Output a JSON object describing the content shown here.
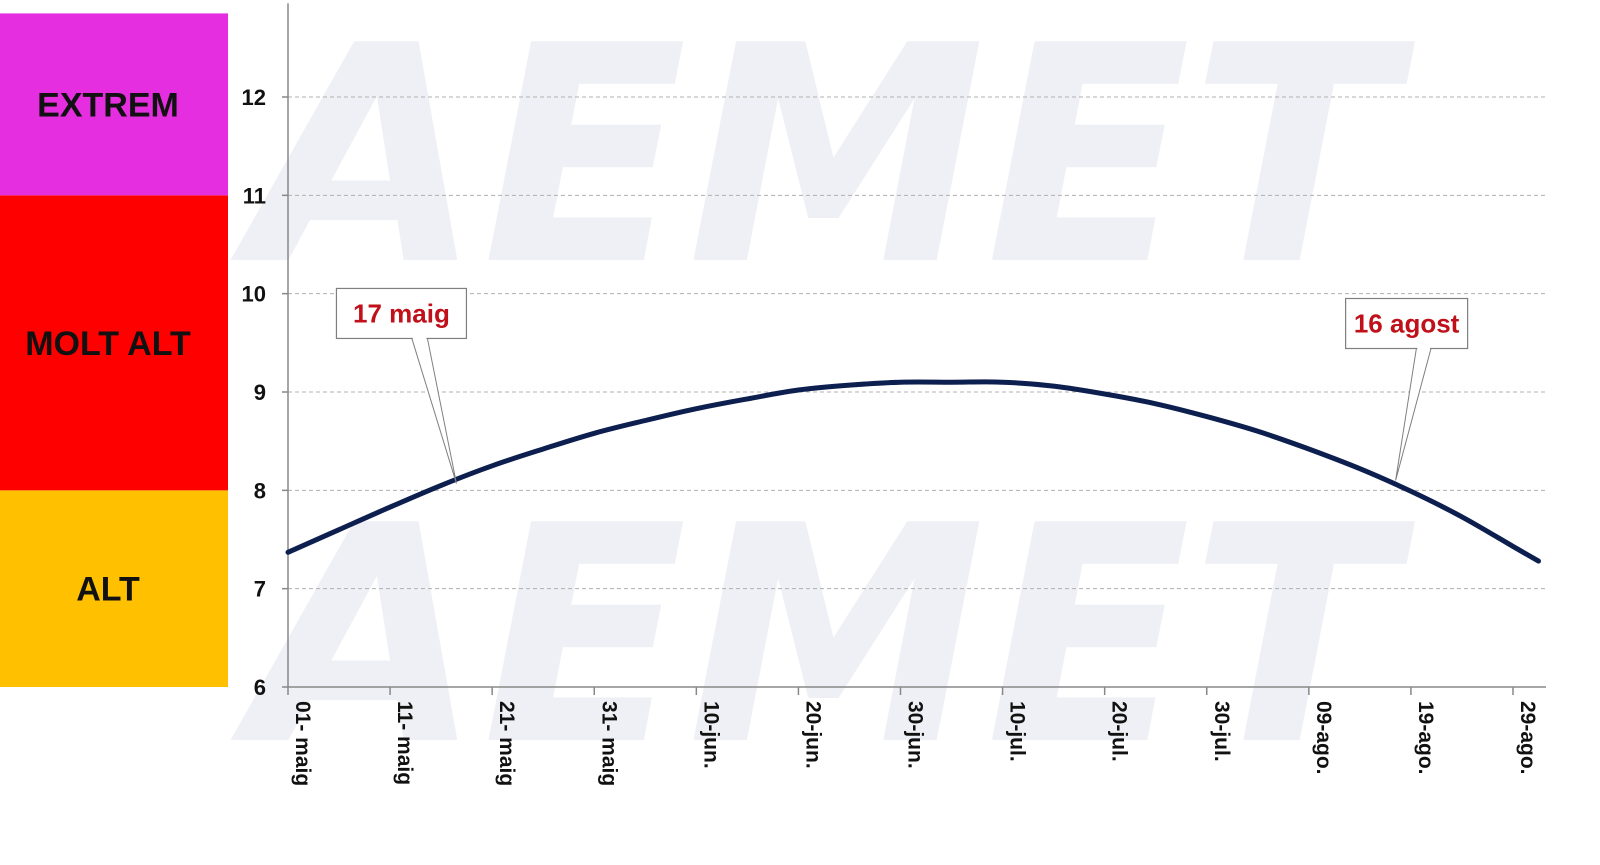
{
  "colors": {
    "line": "#0d1f4f",
    "callout_text": "#c0101a",
    "grid": "#b0b0b0",
    "axis": "#888888"
  },
  "risk_bands": [
    {
      "label": "ALT",
      "from": 6,
      "to": 8,
      "color": "#ffc000"
    },
    {
      "label": "MOLT ALT",
      "from": 8,
      "to": 11,
      "color": "#ff0000"
    },
    {
      "label": "EXTREM",
      "from": 11,
      "to": 12.85,
      "color": "#e52ee0"
    }
  ],
  "chart_data": {
    "type": "line",
    "title": "",
    "xlabel": "",
    "ylabel": "",
    "ylim": [
      6,
      12.85
    ],
    "y_ticks": [
      6,
      7,
      8,
      9,
      10,
      11,
      12
    ],
    "grid": true,
    "x_ticks": [
      {
        "day": 0,
        "label": "01- maig"
      },
      {
        "day": 10,
        "label": "11- maig"
      },
      {
        "day": 20,
        "label": "21- maig"
      },
      {
        "day": 30,
        "label": "31- maig"
      },
      {
        "day": 40,
        "label": "10-jun."
      },
      {
        "day": 50,
        "label": "20-jun."
      },
      {
        "day": 60,
        "label": "30-jun."
      },
      {
        "day": 70,
        "label": "10-jul."
      },
      {
        "day": 80,
        "label": "20-jul."
      },
      {
        "day": 90,
        "label": "30-jul."
      },
      {
        "day": 100,
        "label": "09-ago."
      },
      {
        "day": 110,
        "label": "19-ago."
      },
      {
        "day": 120,
        "label": "29-ago."
      }
    ],
    "xlim": [
      0,
      122.5
    ],
    "series": [
      {
        "x": [
          0,
          5,
          10,
          15,
          20,
          25,
          30,
          35,
          40,
          45,
          50,
          55,
          60,
          65,
          70,
          75,
          80,
          85,
          90,
          95,
          100,
          105,
          110,
          115,
          120,
          122.5
        ],
        "y": [
          7.37,
          7.6,
          7.83,
          8.05,
          8.25,
          8.42,
          8.58,
          8.71,
          8.83,
          8.93,
          9.02,
          9.07,
          9.1,
          9.1,
          9.1,
          9.06,
          8.98,
          8.88,
          8.75,
          8.6,
          8.42,
          8.22,
          7.99,
          7.73,
          7.43,
          7.28
        ]
      }
    ],
    "annotations": [
      {
        "text": "17 maig",
        "x": 16.5,
        "y": 8.07
      },
      {
        "text": "16 agost",
        "x": 108.5,
        "y": 8.1
      }
    ]
  },
  "watermark": {
    "text": "AEMET"
  }
}
